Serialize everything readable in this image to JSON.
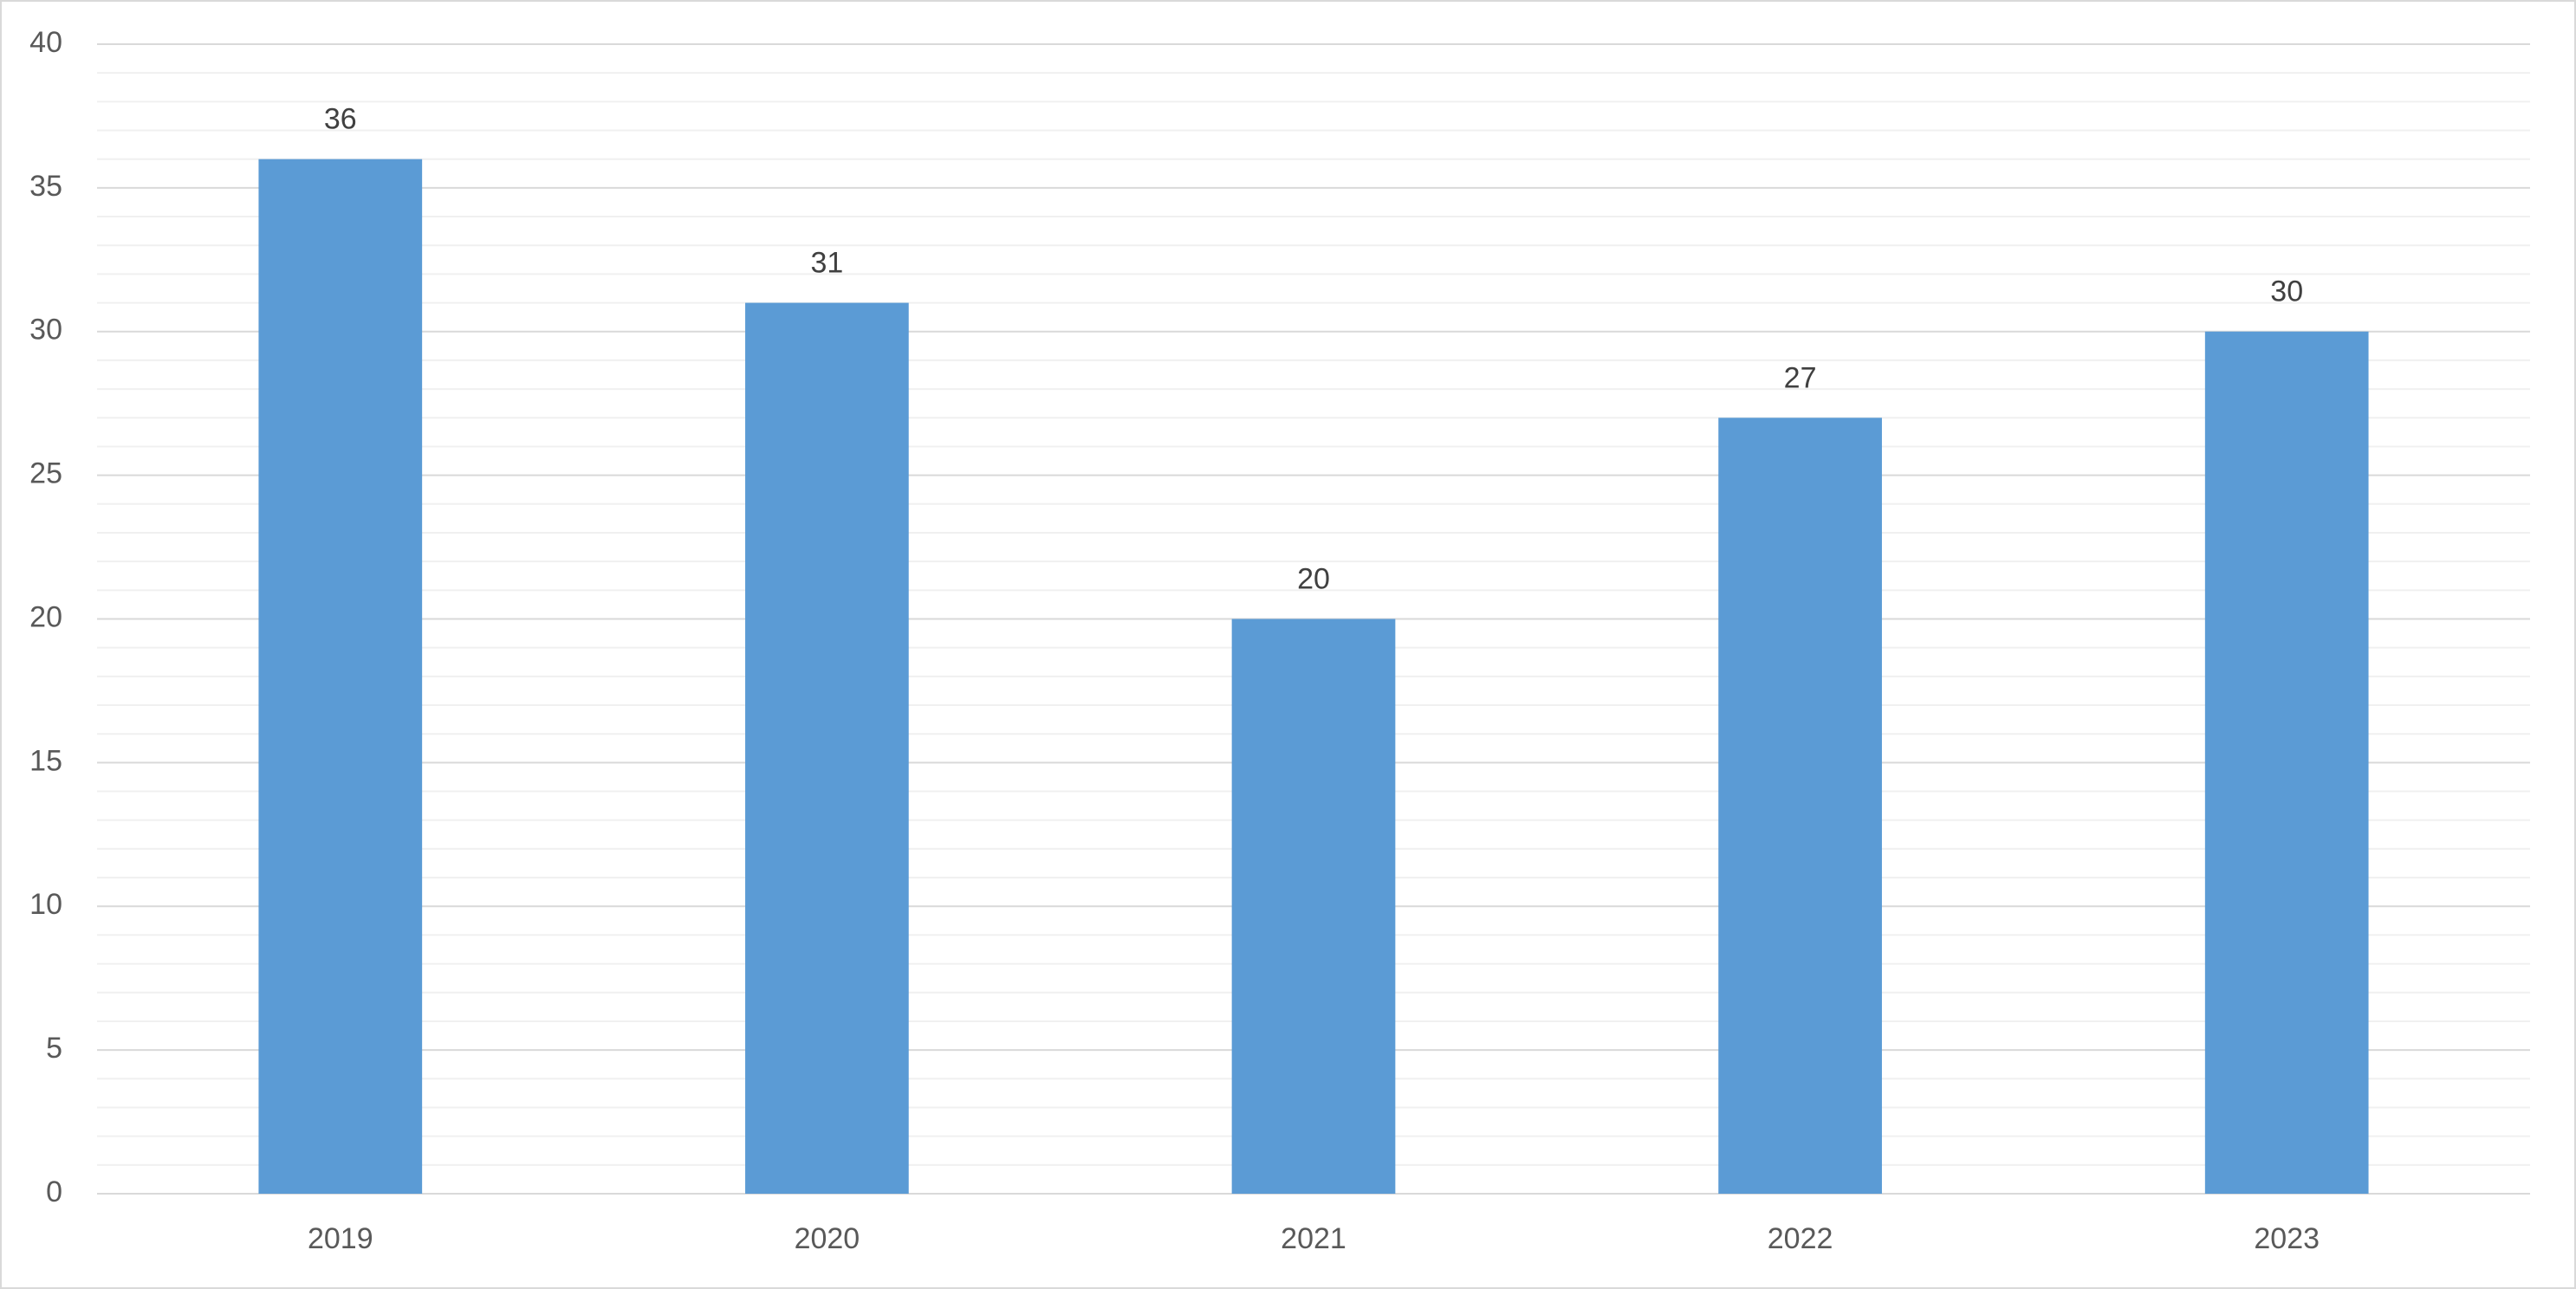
{
  "chart_data": {
    "type": "bar",
    "categories": [
      "2019",
      "2020",
      "2021",
      "2022",
      "2023"
    ],
    "values": [
      36,
      31,
      20,
      27,
      30
    ],
    "color": "#5b9bd5",
    "ylim": [
      0,
      40
    ],
    "yticks": [
      0,
      5,
      10,
      15,
      20,
      25,
      30,
      35,
      40
    ],
    "grid": true,
    "minor_grid": true,
    "data_labels": true
  }
}
